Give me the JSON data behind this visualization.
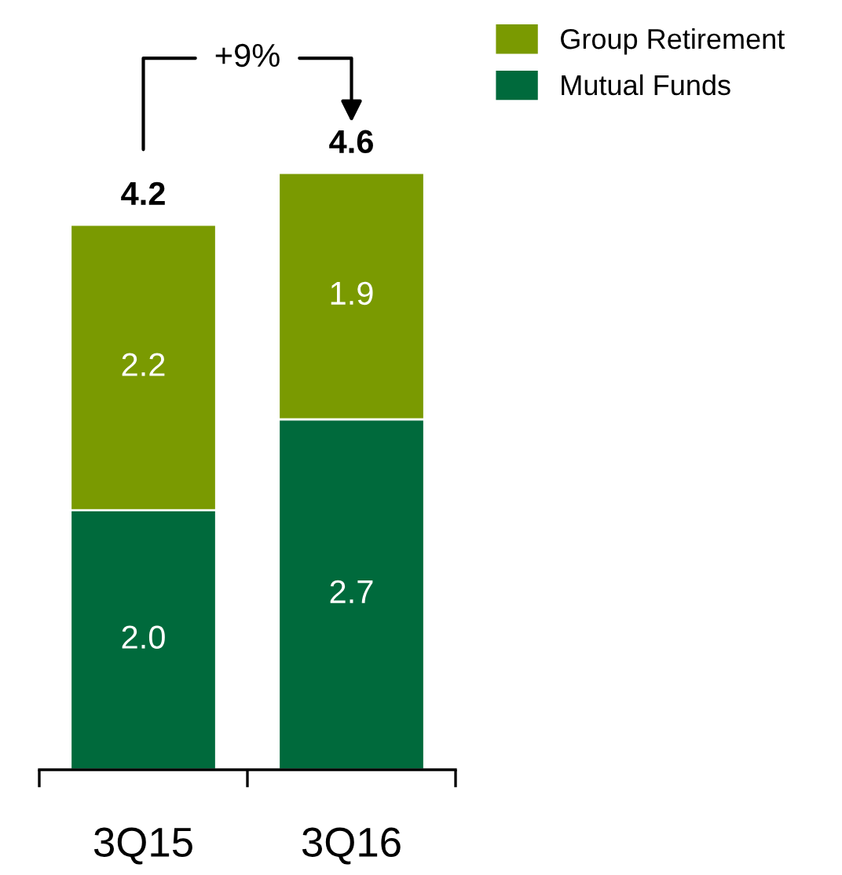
{
  "chart_data": {
    "type": "bar",
    "stacked": true,
    "categories": [
      "3Q15",
      "3Q16"
    ],
    "series": [
      {
        "name": "Mutual Funds",
        "color": "#006a3c",
        "values": [
          2.0,
          2.7
        ],
        "value_labels": [
          "2.0",
          "2.7"
        ]
      },
      {
        "name": "Group Retirement",
        "color": "#7a9a01",
        "values": [
          2.2,
          1.9
        ],
        "value_labels": [
          "2.2",
          "1.9"
        ]
      }
    ],
    "totals": [
      "4.2",
      "4.6"
    ],
    "annotations": [
      "+9%"
    ],
    "legend": "top right",
    "grid": false
  }
}
